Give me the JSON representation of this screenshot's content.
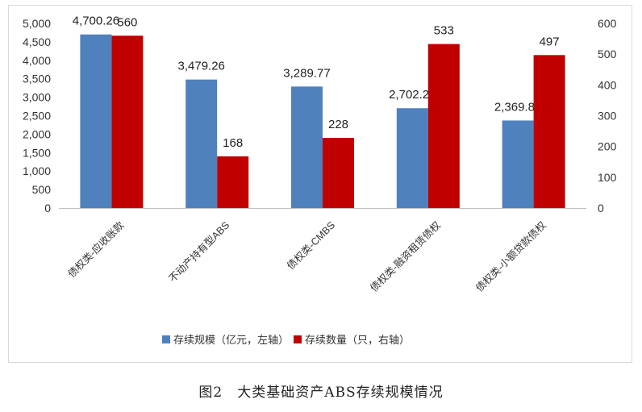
{
  "caption": "图2　大类基础资产ABS存续规模情况",
  "chart_data": {
    "type": "bar",
    "categories": [
      "债权类-应收账款",
      "不动产持有型ABS",
      "债权类-CMBS",
      "债权类-融资租赁债权",
      "债权类-小额贷款债权"
    ],
    "series": [
      {
        "name": "存续规模（亿元，左轴）",
        "axis": "left",
        "color": "#4f81bd",
        "values": [
          4700.26,
          3479.26,
          3289.77,
          2702.24,
          2369.84
        ],
        "labels": [
          "4,700.26",
          "3,479.26",
          "3,289.77",
          "2,702.24",
          "2,369.84"
        ]
      },
      {
        "name": "存续数量（只，右轴）",
        "axis": "right",
        "color": "#c00000",
        "values": [
          560,
          168,
          228,
          533,
          497
        ],
        "labels": [
          "560",
          "168",
          "228",
          "533",
          "497"
        ]
      }
    ],
    "y_left": {
      "range": [
        0,
        5000
      ],
      "ticks": [
        "0",
        "500",
        "1,000",
        "1,500",
        "2,000",
        "2,500",
        "3,000",
        "3,500",
        "4,000",
        "4,500",
        "5,000"
      ]
    },
    "y_right": {
      "range": [
        0,
        600
      ],
      "ticks": [
        "0",
        "100",
        "200",
        "300",
        "400",
        "500",
        "600"
      ]
    },
    "grid": false,
    "legend_position": "bottom"
  }
}
